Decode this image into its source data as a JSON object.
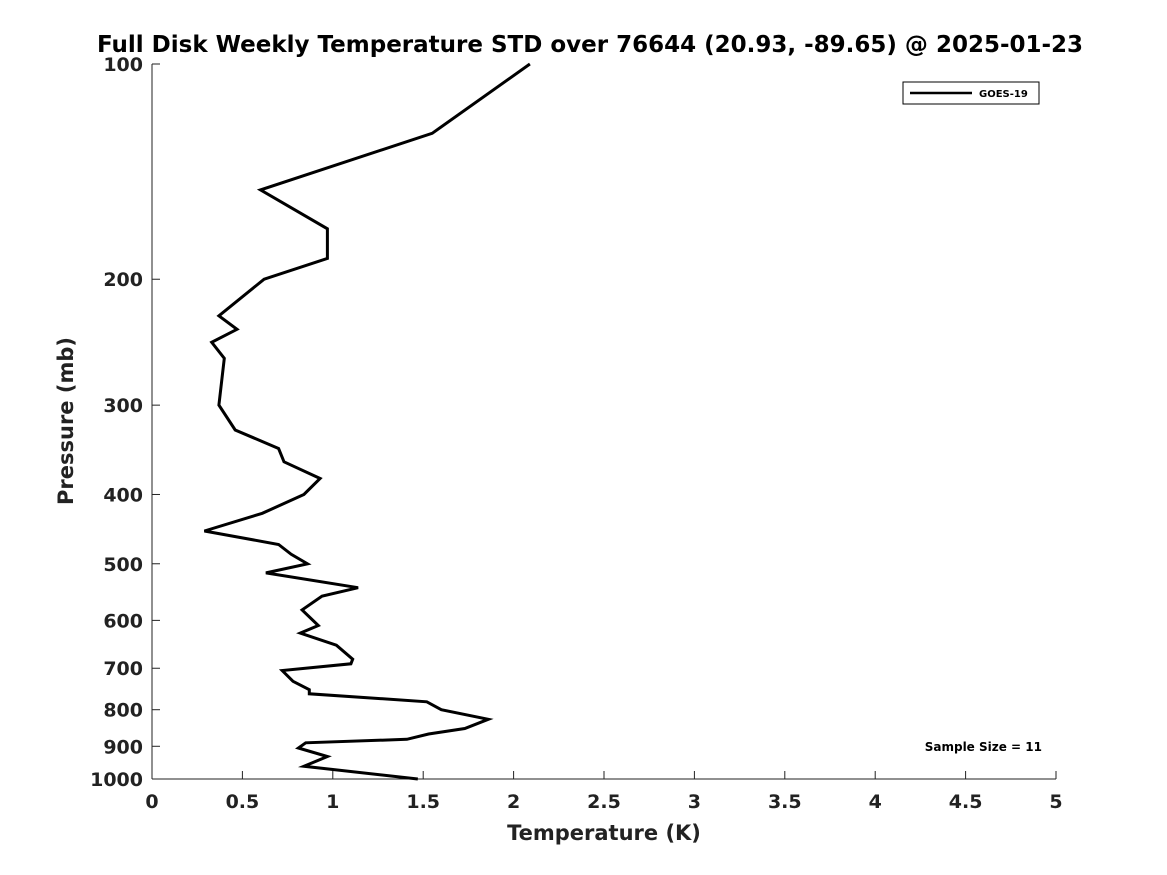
{
  "chart_data": {
    "type": "line",
    "title": "Full Disk Weekly Temperature STD over 76644 (20.93, -89.65) @ 2025-01-23",
    "xlabel": "Temperature (K)",
    "ylabel": "Pressure (mb)",
    "xlim": [
      0,
      5
    ],
    "ylim": [
      100,
      1000
    ],
    "y_scale": "log",
    "y_inverted": true,
    "x_ticks": [
      "0",
      "0.5",
      "1",
      "1.5",
      "2",
      "2.5",
      "3",
      "3.5",
      "4",
      "4.5",
      "5"
    ],
    "y_ticks": [
      "100",
      "200",
      "300",
      "400",
      "500",
      "600",
      "700",
      "800",
      "900",
      "1000"
    ],
    "grid": false,
    "legend_position": "top-right",
    "annotation": "Sample Size = 11",
    "series": [
      {
        "name": "GOES-19",
        "color": "#000000",
        "x": [
          2.09,
          1.55,
          0.6,
          0.97,
          0.97,
          0.62,
          0.37,
          0.47,
          0.33,
          0.4,
          0.37,
          0.46,
          0.7,
          0.73,
          0.93,
          0.84,
          0.61,
          0.29,
          0.7,
          0.77,
          0.86,
          0.63,
          1.14,
          0.94,
          0.83,
          0.92,
          0.82,
          1.02,
          1.11,
          1.1,
          0.72,
          0.78,
          0.87,
          0.87,
          1.52,
          1.6,
          1.86,
          1.73,
          1.53,
          1.41,
          0.85,
          0.81,
          0.97,
          0.84,
          1.47
        ],
        "y": [
          100,
          125,
          150,
          170,
          187,
          200,
          225,
          235,
          245,
          258,
          300,
          325,
          345,
          360,
          380,
          400,
          425,
          450,
          470,
          485,
          500,
          515,
          540,
          555,
          580,
          610,
          625,
          650,
          680,
          690,
          705,
          730,
          750,
          760,
          780,
          800,
          825,
          850,
          865,
          880,
          890,
          905,
          930,
          960,
          1000
        ]
      }
    ]
  }
}
